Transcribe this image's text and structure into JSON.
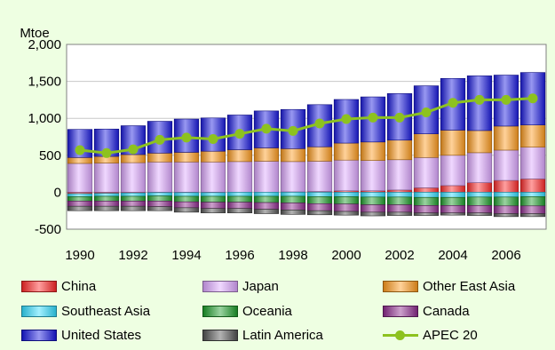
{
  "chart_data": {
    "type": "bar",
    "stacked": true,
    "title": "",
    "ylabel": "Mtoe",
    "xlabel": "",
    "ylim": [
      -500,
      2000
    ],
    "yticks": [
      -500,
      0,
      500,
      1000,
      1500,
      2000
    ],
    "ytick_labels": [
      "-500",
      "0",
      "500",
      "1,000",
      "1,500",
      "2,000"
    ],
    "x": [
      1990,
      1991,
      1992,
      1993,
      1994,
      1995,
      1996,
      1997,
      1998,
      1999,
      2000,
      2001,
      2002,
      2003,
      2004,
      2005,
      2006,
      2007
    ],
    "xtick_labels": [
      "1990",
      "1992",
      "1994",
      "1996",
      "1998",
      "2000",
      "2002",
      "2004",
      "2006"
    ],
    "grid": true,
    "legend_position": "bottom",
    "series": [
      {
        "name": "China",
        "color": "#FF2A2A",
        "values": [
          -20,
          -15,
          -10,
          -5,
          -5,
          -5,
          0,
          0,
          5,
          10,
          20,
          20,
          30,
          60,
          90,
          130,
          160,
          180
        ]
      },
      {
        "name": "Japan",
        "color": "#DDA8FF",
        "values": [
          390,
          395,
          400,
          410,
          410,
          410,
          415,
          420,
          410,
          410,
          415,
          410,
          410,
          410,
          410,
          405,
          410,
          430
        ]
      },
      {
        "name": "Other East Asia",
        "color": "#FF9C1F",
        "values": [
          80,
          90,
          110,
          120,
          130,
          145,
          160,
          180,
          175,
          195,
          230,
          250,
          265,
          320,
          340,
          300,
          325,
          300
        ]
      },
      {
        "name": "Southeast Asia",
        "color": "#33DDFF",
        "values": [
          -40,
          -40,
          -45,
          -45,
          -50,
          -50,
          -55,
          -55,
          -55,
          -60,
          -60,
          -65,
          -65,
          -70,
          -70,
          -65,
          -65,
          -60
        ]
      },
      {
        "name": "Oceania",
        "color": "#1E9E2C",
        "values": [
          -60,
          -65,
          -65,
          -70,
          -75,
          -80,
          -80,
          -85,
          -90,
          -95,
          -100,
          -105,
          -105,
          -110,
          -110,
          -115,
          -120,
          -125
        ]
      },
      {
        "name": "Canada",
        "color": "#8E2C8E",
        "values": [
          -70,
          -70,
          -70,
          -75,
          -80,
          -85,
          -85,
          -90,
          -95,
          -95,
          -100,
          -100,
          -100,
          -100,
          -100,
          -100,
          -105,
          -105
        ]
      },
      {
        "name": "United States",
        "color": "#1A1AE0",
        "values": [
          380,
          370,
          390,
          430,
          450,
          450,
          470,
          500,
          530,
          570,
          590,
          610,
          630,
          650,
          700,
          740,
          690,
          710
        ]
      },
      {
        "name": "Latin America",
        "color": "#555555",
        "values": [
          -60,
          -60,
          -60,
          -55,
          -60,
          -60,
          -60,
          -60,
          -60,
          -55,
          -50,
          -50,
          -45,
          -35,
          -30,
          -35,
          -40,
          -40
        ]
      }
    ],
    "line_series": {
      "name": "APEC 20",
      "color": "#8DC21F",
      "values": [
        570,
        530,
        580,
        710,
        740,
        720,
        790,
        860,
        830,
        930,
        990,
        1010,
        1010,
        1080,
        1210,
        1250,
        1250,
        1270
      ]
    }
  }
}
